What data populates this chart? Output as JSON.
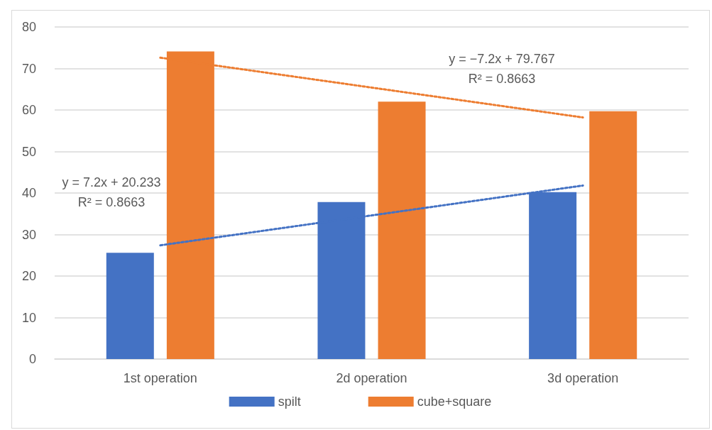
{
  "chart_data": {
    "type": "bar",
    "categories": [
      "1st operation",
      "2d operation",
      "3d operation"
    ],
    "series": [
      {
        "name": "spilt",
        "color": "#4472c4",
        "values": [
          25.6,
          37.8,
          40.2
        ]
      },
      {
        "name": "cube+square",
        "color": "#ed7d31",
        "values": [
          74.1,
          62.0,
          59.7
        ]
      },
      {
        "type": "line",
        "color": "#4472c4",
        "x": [
          "1st operation",
          "2d operation",
          "3d operation"
        ],
        "values": [
          27.4,
          34.6,
          41.8
        ],
        "line_style": "dotted",
        "marker": "none"
      },
      {
        "type": "line",
        "color": "#ed7d31",
        "x": [
          "1st operation",
          "2d operation",
          "3d operation"
        ],
        "values": [
          72.6,
          65.4,
          58.2
        ],
        "line_style": "dotted",
        "marker": "none"
      }
    ],
    "annotations": [
      "y = 7.2x + 20.233",
      "R² = 0.8663",
      "y = −7.2x + 79.767",
      "R² = 0.8663"
    ],
    "ylim": [
      0,
      80
    ],
    "yticks": [
      0,
      10,
      20,
      30,
      40,
      50,
      60,
      70,
      80
    ],
    "grid": "y",
    "legend": "bottom"
  }
}
